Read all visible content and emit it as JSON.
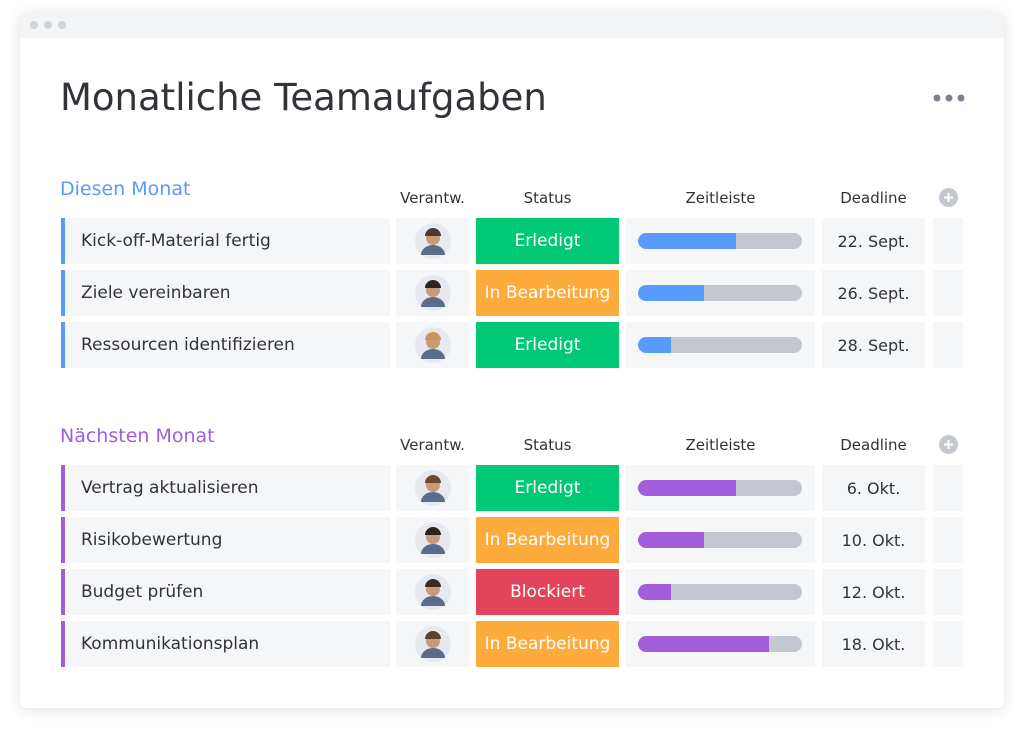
{
  "header": {
    "title": "Monatliche Teamaufgaben"
  },
  "columns": [
    "Verantw.",
    "Status",
    "Zeitleiste",
    "Deadline"
  ],
  "groups": [
    {
      "name": "Diesen Monat",
      "color": "#579bfc",
      "rows": [
        {
          "task": "Kick-off-Material fertig",
          "status": "Erledigt",
          "status_color": "#00c875",
          "progress": 60,
          "deadline": "22. Sept."
        },
        {
          "task": "Ziele vereinbaren",
          "status": "In Bearbeitung",
          "status_color": "#fdab3d",
          "progress": 40,
          "deadline": "26. Sept."
        },
        {
          "task": "Ressourcen identifizieren",
          "status": "Erledigt",
          "status_color": "#00c875",
          "progress": 20,
          "deadline": "28. Sept."
        }
      ]
    },
    {
      "name": "Nächsten Monat",
      "color": "#a25ddc",
      "rows": [
        {
          "task": "Vertrag aktualisieren",
          "status": "Erledigt",
          "status_color": "#00c875",
          "progress": 60,
          "deadline": "6. Okt."
        },
        {
          "task": "Risikobewertung",
          "status": "In Bearbeitung",
          "status_color": "#fdab3d",
          "progress": 40,
          "deadline": "10. Okt."
        },
        {
          "task": "Budget prüfen",
          "status": "Blockiert",
          "status_color": "#e2445c",
          "progress": 20,
          "deadline": "12. Okt."
        },
        {
          "task": "Kommunikationsplan",
          "status": "In Bearbeitung",
          "status_color": "#fdab3d",
          "progress": 80,
          "deadline": "18. Okt."
        }
      ]
    }
  ]
}
